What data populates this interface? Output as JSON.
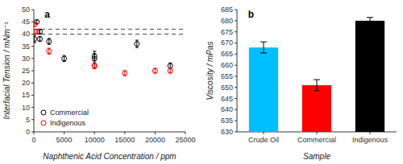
{
  "chart_data": [
    {
      "type": "scatter",
      "title": "a",
      "xlabel": "Naphthenic Acid Concentration / ppm",
      "ylabel": "Interfacial Tension / mNm⁻¹",
      "series": [
        {
          "name": "Commercial",
          "color": "#000000",
          "marker": "circle",
          "x": [
            100,
            500,
            1000,
            1000,
            2500,
            5000,
            10000,
            10000,
            17000,
            22500
          ],
          "values": [
            38,
            45,
            41,
            38,
            37,
            30,
            31,
            30,
            36,
            27
          ],
          "errors": [
            1.5,
            0.8,
            1.0,
            1.0,
            1.2,
            1.2,
            2.0,
            2.0,
            1.5,
            1.2
          ]
        },
        {
          "name": "Indigenous",
          "color": "#ff0000",
          "marker": "circle",
          "x": [
            100,
            500,
            2500,
            10000,
            10000,
            15000,
            20000,
            22500
          ],
          "values": [
            44,
            41,
            33,
            27,
            27,
            24,
            25,
            25
          ],
          "errors": [
            0.8,
            1.0,
            1.2,
            1.2,
            1.2,
            1.0,
            1.0,
            1.0
          ]
        }
      ],
      "hlines": [
        42,
        40
      ],
      "xlim": [
        0,
        25000
      ],
      "ylim": [
        0,
        50
      ],
      "xticks": [
        0,
        5000,
        10000,
        15000,
        20000,
        25000
      ],
      "yticks": [
        0,
        5,
        10,
        15,
        20,
        25,
        30,
        35,
        40,
        45,
        50
      ],
      "legend": "lower left",
      "grid": false
    },
    {
      "type": "bar",
      "title": "b",
      "xlabel": "Sample",
      "ylabel": "Viscosity / mPas",
      "categories": [
        "Crude Oil",
        "Commercial",
        "Indigenous"
      ],
      "values": [
        668,
        651,
        680
      ],
      "errors": [
        2.5,
        2.5,
        1.5
      ],
      "colors": [
        "#00bfff",
        "#ff0000",
        "#000000"
      ],
      "ylim": [
        630,
        685
      ],
      "yticks": [
        630,
        635,
        640,
        645,
        650,
        655,
        660,
        665,
        670,
        675,
        680,
        685
      ],
      "grid": false
    }
  ]
}
